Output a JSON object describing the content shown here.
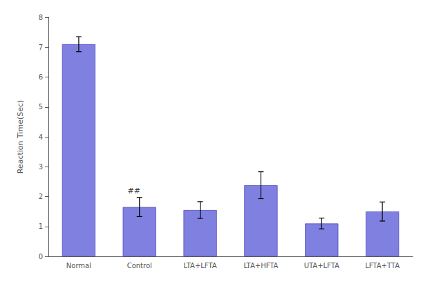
{
  "chart_data": {
    "type": "bar",
    "categories": [
      "Normal",
      "Control",
      "LTA+LFTA",
      "LTA+HFTA",
      "UTA+LFTA",
      "LFTA+TTA"
    ],
    "values": [
      7.1,
      1.65,
      1.55,
      2.38,
      1.1,
      1.5
    ],
    "errors": [
      0.25,
      0.32,
      0.28,
      0.45,
      0.18,
      0.32
    ],
    "color": "#8080e0",
    "ylabel": "Reaction Time(Sec)",
    "ylim": [
      0,
      8
    ],
    "yticks": [
      0,
      1,
      2,
      3,
      4,
      5,
      6,
      7,
      8
    ],
    "annotations": [
      {
        "text": "##",
        "x": "Control",
        "y": 2.05
      }
    ],
    "grid": false
  }
}
